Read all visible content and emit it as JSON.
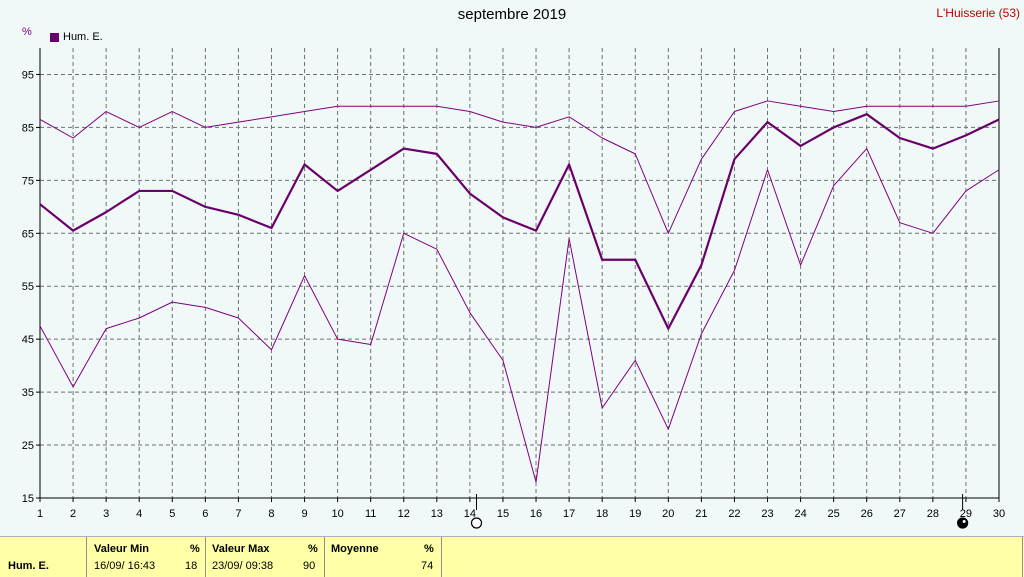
{
  "chart_data": {
    "type": "line",
    "title": "septembre 2019",
    "station": "L'Huisserie (53)",
    "unit": "%",
    "x": [
      1,
      2,
      3,
      4,
      5,
      6,
      7,
      8,
      9,
      10,
      11,
      12,
      13,
      14,
      15,
      16,
      17,
      18,
      19,
      20,
      21,
      22,
      23,
      24,
      25,
      26,
      27,
      28,
      29,
      30
    ],
    "ylim": [
      15,
      100
    ],
    "yticks": [
      15,
      25,
      35,
      45,
      55,
      65,
      75,
      85,
      95
    ],
    "grid": true,
    "legend": "top-left",
    "series": [
      {
        "name": "Hum. E.",
        "role": "mean",
        "color": "#6a006a",
        "values": [
          70.5,
          65.5,
          69,
          73,
          73,
          70,
          68.5,
          66,
          78,
          73,
          77,
          81,
          80,
          72.5,
          68,
          65.5,
          78,
          60,
          60,
          47,
          59,
          79,
          86,
          81.5,
          85,
          87.5,
          83,
          81,
          83.5,
          86.5
        ]
      },
      {
        "role": "max",
        "color": "#800080",
        "values": [
          86.5,
          83,
          88,
          85,
          88,
          85,
          86,
          87,
          88,
          89,
          89,
          89,
          89,
          88,
          86,
          85,
          87,
          83,
          80,
          65,
          79,
          88,
          90,
          89,
          88,
          89,
          89,
          89,
          89,
          90
        ]
      },
      {
        "role": "min",
        "color": "#800080",
        "values": [
          47.5,
          36,
          47,
          49,
          52,
          51,
          49,
          43,
          57,
          45,
          44,
          65,
          62,
          50,
          41,
          18,
          64,
          32,
          41,
          28,
          46,
          58,
          77,
          59,
          74,
          81,
          67,
          65,
          73,
          77
        ]
      }
    ],
    "markers": [
      {
        "day": 14.2,
        "symbol": "new-moon"
      },
      {
        "day": 28.9,
        "symbol": "full-moon"
      }
    ]
  },
  "footer": {
    "row_label": "Hum. E.",
    "min": {
      "header": "Valeur Min",
      "unit": "%",
      "date": "16/09/  16:43",
      "value": "18"
    },
    "max": {
      "header": "Valeur Max",
      "unit": "%",
      "date": "23/09/  09:38",
      "value": "90"
    },
    "avg": {
      "header": "Moyenne",
      "unit": "%",
      "value": "74"
    }
  }
}
